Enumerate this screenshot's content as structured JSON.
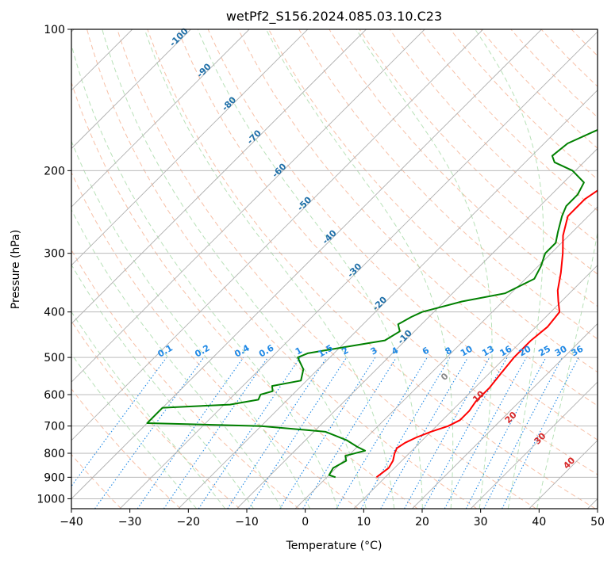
{
  "chart_data": {
    "type": "line",
    "title": "wetPf2_S156.2024.085.03.10.C23",
    "xlabel": "Temperature (°C)",
    "ylabel": "Pressure (hPa)",
    "xlim": [
      -40,
      50
    ],
    "ylim": [
      1050,
      100
    ],
    "y_scale": "log",
    "x_ticks": [
      -40,
      -30,
      -20,
      -10,
      0,
      10,
      20,
      30,
      40,
      50
    ],
    "y_ticks": [
      100,
      200,
      300,
      400,
      500,
      600,
      700,
      800,
      900,
      1000
    ],
    "grid": true,
    "skew": true,
    "series": [
      {
        "label": "temperature",
        "color": "#ff0000",
        "points": [
          [
            8.5,
            900
          ],
          [
            9.0,
            860
          ],
          [
            8.5,
            830
          ],
          [
            7.5,
            800
          ],
          [
            7.0,
            780
          ],
          [
            7.5,
            760
          ],
          [
            8.5,
            740
          ],
          [
            10.0,
            720
          ],
          [
            12.0,
            700
          ],
          [
            13.0,
            680
          ],
          [
            13.0,
            650
          ],
          [
            12.5,
            620
          ],
          [
            12.5,
            580
          ],
          [
            12.0,
            540
          ],
          [
            11.5,
            500
          ],
          [
            11.5,
            460
          ],
          [
            12.0,
            430
          ],
          [
            11.5,
            400
          ],
          [
            9.5,
            380
          ],
          [
            7.5,
            360
          ],
          [
            5.0,
            330
          ],
          [
            2.0,
            300
          ],
          [
            -1.0,
            275
          ],
          [
            -3.5,
            250
          ],
          [
            -3.5,
            230
          ],
          [
            -2.0,
            210
          ],
          [
            -0.5,
            200
          ],
          [
            2.0,
            190
          ],
          [
            5.5,
            178
          ],
          [
            9.0,
            165
          ],
          [
            12.0,
            155
          ],
          [
            15.0,
            145
          ],
          [
            19.0,
            135
          ],
          [
            23.0,
            125
          ],
          [
            26.0,
            118
          ],
          [
            28.0,
            112
          ],
          [
            28.5,
            106
          ],
          [
            28.5,
            100
          ]
        ]
      },
      {
        "label": "dewpoint",
        "color": "#008000",
        "points": [
          [
            1.5,
            900
          ],
          [
            0.0,
            890
          ],
          [
            -0.5,
            860
          ],
          [
            0.5,
            830
          ],
          [
            -0.5,
            810
          ],
          [
            2.0,
            790
          ],
          [
            0.0,
            775
          ],
          [
            -3.0,
            750
          ],
          [
            -8.0,
            720
          ],
          [
            -20.0,
            700
          ],
          [
            -40.0,
            690
          ],
          [
            -40.0,
            640
          ],
          [
            -29.0,
            630
          ],
          [
            -25.0,
            615
          ],
          [
            -25.5,
            600
          ],
          [
            -24.0,
            590
          ],
          [
            -25.0,
            575
          ],
          [
            -21.0,
            560
          ],
          [
            -22.5,
            530
          ],
          [
            -25.5,
            500
          ],
          [
            -24.5,
            490
          ],
          [
            -21.0,
            480
          ],
          [
            -13.5,
            460
          ],
          [
            -12.5,
            440
          ],
          [
            -14.0,
            425
          ],
          [
            -13.0,
            410
          ],
          [
            -12.0,
            400
          ],
          [
            -7.0,
            380
          ],
          [
            -1.0,
            365
          ],
          [
            1.5,
            340
          ],
          [
            0.5,
            320
          ],
          [
            -1.0,
            300
          ],
          [
            -1.0,
            285
          ],
          [
            -2.5,
            270
          ],
          [
            -4.5,
            250
          ],
          [
            -5.5,
            238
          ],
          [
            -5.5,
            225
          ],
          [
            -6.5,
            212
          ],
          [
            -10.5,
            200
          ],
          [
            -15.0,
            192
          ],
          [
            -16.5,
            186
          ],
          [
            -16.0,
            175
          ],
          [
            -13.5,
            165
          ],
          [
            -11.5,
            158
          ],
          [
            -11.0,
            150
          ],
          [
            -10.5,
            140
          ],
          [
            -9.5,
            130
          ],
          [
            -8.0,
            120
          ],
          [
            -5.5,
            110
          ],
          [
            -3.0,
            104
          ],
          [
            -1.0,
            100
          ]
        ]
      }
    ],
    "mixing_ratio_labels": [
      "0.1",
      "0.2",
      "0.4",
      "0.6",
      "1",
      "1.5",
      "2",
      "3",
      "4",
      "6",
      "8",
      "10",
      "13",
      "16",
      "20",
      "25",
      "30",
      "36"
    ],
    "dry_adiabat_labels": [
      "-100",
      "-90",
      "-80",
      "-70",
      "-60",
      "-50",
      "-40",
      "-30",
      "-20",
      "-10"
    ],
    "moist_adiabat_labels": [
      "0",
      "10",
      "20",
      "30",
      "40"
    ],
    "colors": {
      "temperature": "#ff0000",
      "dewpoint": "#008000",
      "dry_adiabat": "#f4a582",
      "moist_adiabat": "#a6d9a6",
      "mixing_ratio": "#1e88e5",
      "dry_adiabat_label": "#1f6fa8",
      "moist_adiabat_label": "#d62728",
      "grid": "#b0b0b0"
    }
  }
}
